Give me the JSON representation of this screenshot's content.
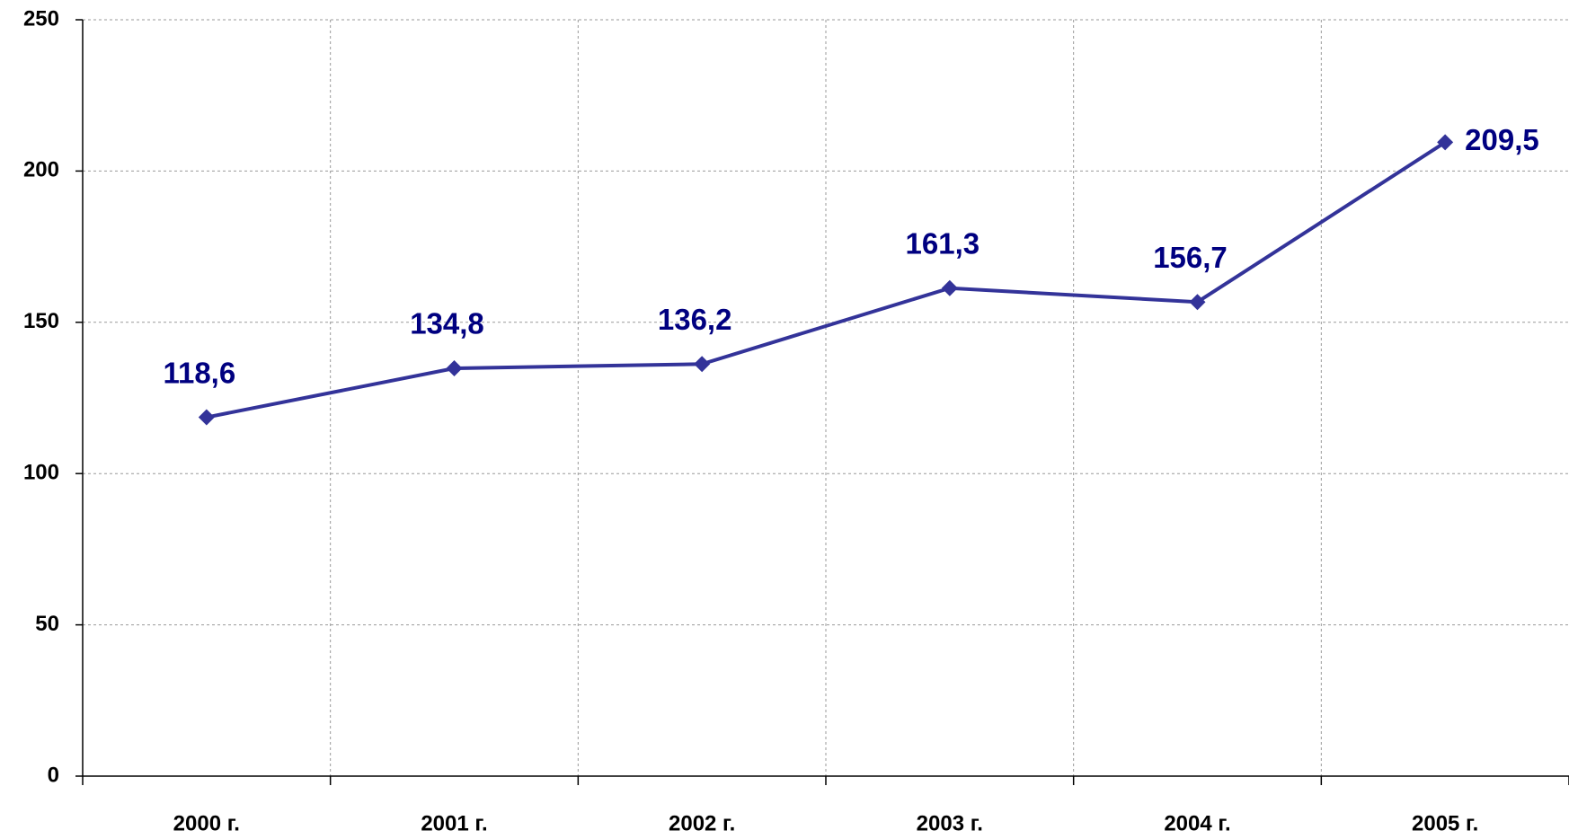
{
  "chart_data": {
    "type": "line",
    "categories": [
      "2000 г.",
      "2001 г.",
      "2002 г.",
      "2003 г.",
      "2004 г.",
      "2005 г."
    ],
    "series": [
      {
        "color": "#333399",
        "values": [
          118.6,
          134.8,
          136.2,
          161.3,
          156.7,
          209.5
        ],
        "value_labels": [
          "118,6",
          "134,8",
          "136,2",
          "161,3",
          "156,7",
          "209,5"
        ]
      }
    ],
    "ylim": [
      0,
      250
    ],
    "yticks": [
      0,
      50,
      100,
      150,
      200,
      250
    ],
    "grid": true
  }
}
